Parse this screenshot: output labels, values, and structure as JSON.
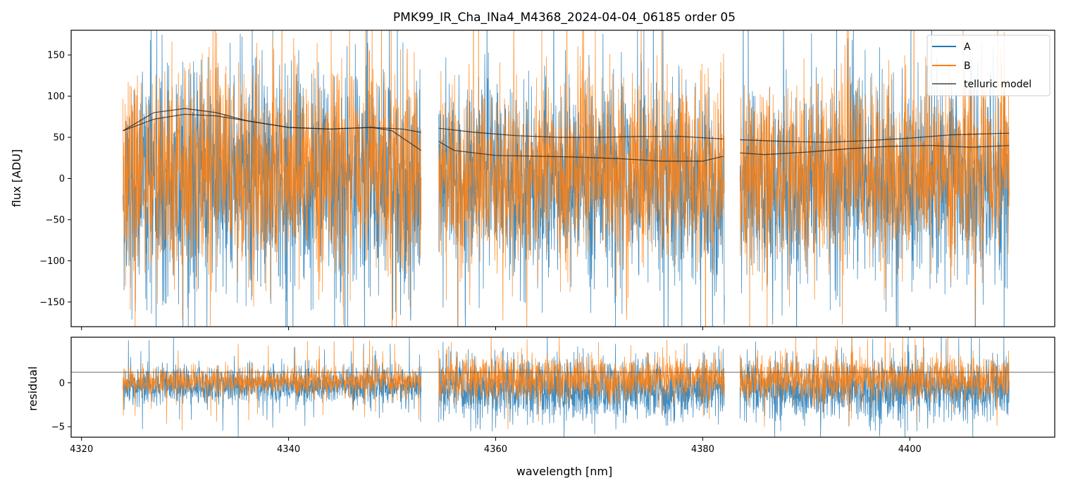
{
  "chart_data": {
    "type": "line",
    "title": "PMK99_IR_Cha_INa4_M4368_2024-04-04_06185  order 05",
    "xlabel": "wavelength [nm]",
    "xlim": [
      4319,
      4414
    ],
    "xticks": [
      4320,
      4340,
      4360,
      4380,
      4400
    ],
    "legend_position": "top-right",
    "colors": {
      "A": "#1f77b4",
      "B": "#ff7f0e",
      "telluric": "#222222"
    },
    "top_panel": {
      "ylabel": "flux [ADU]",
      "ylim": [
        -180,
        180
      ],
      "yticks": [
        -150,
        -100,
        -50,
        0,
        50,
        100,
        150
      ],
      "segments": [
        [
          4324.0,
          4352.8
        ],
        [
          4354.5,
          4382.1
        ],
        [
          4383.6,
          4409.6
        ]
      ],
      "series": [
        {
          "name": "A",
          "color": "#1f77b4",
          "center": 0,
          "noise_sd": 60,
          "note_bias": -12
        },
        {
          "name": "B",
          "color": "#ff7f0e",
          "center": 5,
          "noise_sd": 55,
          "note_bias": 8
        }
      ],
      "telluric_model": {
        "name": "telluric model",
        "curve_1": {
          "x": [
            4324,
            4327,
            4330,
            4333,
            4336,
            4340,
            4344,
            4348,
            4351,
            4352.8,
            4354.5,
            4358,
            4362,
            4366,
            4370,
            4374,
            4378,
            4382,
            4383.6,
            4388,
            4392,
            4396,
            4400,
            4404,
            4409.6
          ],
          "y": [
            58,
            80,
            85,
            80,
            70,
            62,
            60,
            62,
            60,
            56,
            61,
            56,
            52,
            50,
            50,
            51,
            51,
            48,
            47,
            45,
            44,
            46,
            49,
            53,
            55
          ]
        },
        "curve_2": {
          "x": [
            4324,
            4327,
            4330,
            4333,
            4336,
            4340,
            4344,
            4348,
            4350,
            4352.8,
            4354.5,
            4356,
            4360,
            4364,
            4368,
            4372,
            4376,
            4380,
            4382,
            4383.6,
            4386,
            4390,
            4394,
            4398,
            4402,
            4406,
            4409.6
          ],
          "y": [
            58,
            72,
            78,
            76,
            70,
            62,
            60,
            62,
            58,
            34,
            45,
            34,
            28,
            27,
            26,
            24,
            21,
            21,
            27,
            31,
            29,
            32,
            36,
            39,
            40,
            38,
            40
          ]
        }
      }
    },
    "bottom_panel": {
      "ylabel": "residual",
      "ylim": [
        -6.2,
        5.2
      ],
      "yticks": [
        -5,
        0
      ],
      "reference_line": 1.2,
      "series": [
        {
          "name": "A",
          "color": "#1f77b4",
          "center": -0.8
        },
        {
          "name": "B",
          "color": "#ff7f0e",
          "center": 0.4
        }
      ]
    },
    "legend": [
      {
        "label": "A",
        "color": "#1f77b4"
      },
      {
        "label": "B",
        "color": "#ff7f0e"
      },
      {
        "label": "telluric model",
        "color": "#444444"
      }
    ]
  }
}
